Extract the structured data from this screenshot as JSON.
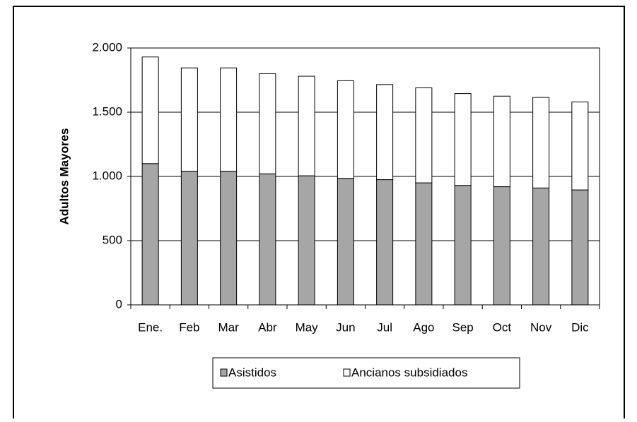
{
  "chart_data": {
    "type": "stacked_bar",
    "ylabel": "Adultos Mayores",
    "categories": [
      "Ene.",
      "Feb",
      "Mar",
      "Abr",
      "May",
      "Jun",
      "Jul",
      "Ago",
      "Sep",
      "Oct",
      "Nov",
      "Dic"
    ],
    "series": [
      {
        "name": "Asistidos",
        "color": "#a6a6a6",
        "values": [
          1100,
          1040,
          1040,
          1020,
          1005,
          985,
          975,
          950,
          930,
          920,
          910,
          895
        ]
      },
      {
        "name": "Ancianos subsidiados",
        "color": "#ffffff",
        "values": [
          830,
          805,
          805,
          780,
          775,
          760,
          740,
          740,
          715,
          705,
          705,
          685
        ]
      }
    ],
    "ylim": [
      0,
      2000
    ],
    "yticks": [
      0,
      500,
      {
        "value": 1000,
        "label": "1.000"
      },
      {
        "value": 1500,
        "label": "1.500"
      },
      {
        "value": 2000,
        "label": "2.000"
      }
    ],
    "grid": true,
    "legend": "bottom"
  }
}
